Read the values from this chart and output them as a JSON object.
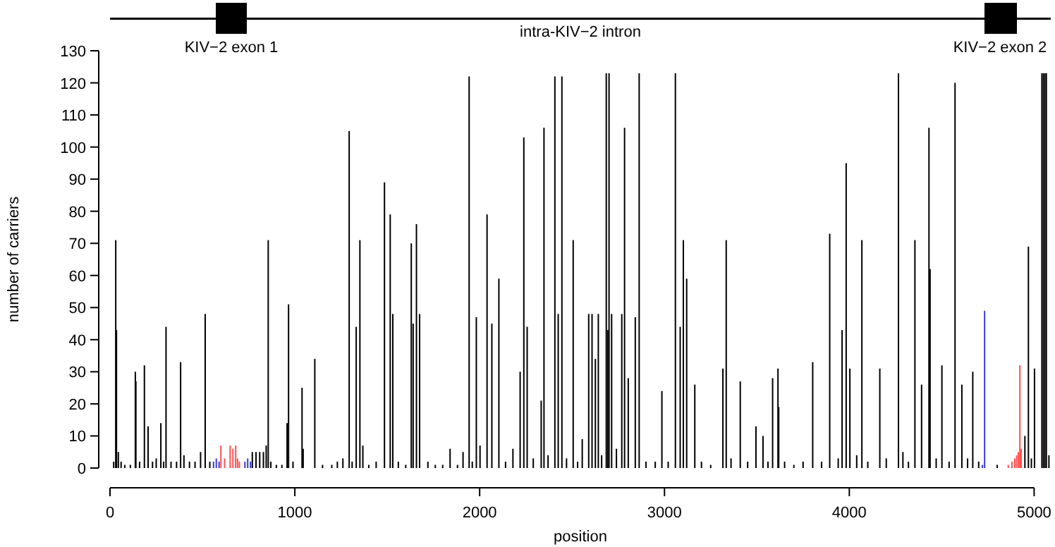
{
  "chart_data": {
    "type": "bar",
    "xlabel": "position",
    "ylabel": "number of carriers",
    "xlim": [
      0,
      5090
    ],
    "xticks": [
      0,
      1000,
      2000,
      3000,
      4000,
      5000
    ],
    "ylim": [
      0,
      130
    ],
    "yticks": [
      0,
      10,
      20,
      30,
      40,
      50,
      60,
      70,
      80,
      90,
      100,
      110,
      120,
      130
    ],
    "grid": false,
    "series": [
      {
        "color": "#000000",
        "x": [
          20,
          31,
          35,
          45,
          60,
          80,
          110,
          137,
          140,
          160,
          186,
          206,
          230,
          250,
          275,
          290,
          303,
          330,
          360,
          382,
          400,
          430,
          460,
          490,
          515,
          540,
          770,
          790,
          810,
          830,
          845,
          856,
          870,
          900,
          930,
          958,
          966,
          990,
          1039,
          1045,
          1108,
          1150,
          1200,
          1230,
          1260,
          1294,
          1310,
          1332,
          1352,
          1368,
          1400,
          1440,
          1485,
          1516,
          1530,
          1560,
          1600,
          1630,
          1640,
          1658,
          1675,
          1720,
          1760,
          1800,
          1840,
          1880,
          1910,
          1943,
          1960,
          1982,
          2002,
          2040,
          2066,
          2104,
          2140,
          2180,
          2219,
          2239,
          2257,
          2290,
          2333,
          2348,
          2370,
          2407,
          2425,
          2445,
          2470,
          2506,
          2530,
          2555,
          2590,
          2608,
          2626,
          2642,
          2660,
          2685,
          2693,
          2700,
          2714,
          2740,
          2769,
          2784,
          2804,
          2842,
          2863,
          2900,
          2950,
          2986,
          3020,
          3059,
          3085,
          3102,
          3120,
          3164,
          3200,
          3250,
          3316,
          3334,
          3360,
          3410,
          3450,
          3495,
          3533,
          3560,
          3585,
          3614,
          3618,
          3650,
          3700,
          3750,
          3802,
          3850,
          3894,
          3940,
          3961,
          3983,
          4003,
          4040,
          4068,
          4100,
          4165,
          4200,
          4266,
          4290,
          4320,
          4355,
          4391,
          4431,
          4437,
          4470,
          4501,
          4540,
          4572,
          4609,
          4640,
          4668,
          4700,
          4800,
          4950,
          4969,
          4985,
          5002,
          5042,
          5050,
          5058,
          5066,
          5080
        ],
        "values": [
          2,
          71,
          43,
          5,
          2,
          1,
          1,
          30,
          27,
          2,
          32,
          13,
          2,
          3,
          14,
          2,
          44,
          2,
          2,
          33,
          4,
          2,
          2,
          5,
          48,
          2,
          5,
          5,
          5,
          5,
          7,
          71,
          2,
          1,
          1,
          14,
          51,
          2,
          25,
          6,
          34,
          1,
          1,
          2,
          3,
          105,
          2,
          44,
          71,
          7,
          1,
          2,
          89,
          79,
          48,
          2,
          1,
          70,
          45,
          76,
          48,
          2,
          1,
          1,
          6,
          1,
          5,
          122,
          2,
          47,
          7,
          79,
          45,
          59,
          2,
          6,
          30,
          103,
          44,
          3,
          21,
          106,
          4,
          122,
          48,
          122,
          3,
          71,
          2,
          9,
          48,
          48,
          34,
          48,
          4,
          123,
          43,
          123,
          48,
          6,
          48,
          106,
          28,
          47,
          123,
          2,
          2,
          24,
          2,
          123,
          44,
          71,
          59,
          26,
          2,
          1,
          31,
          71,
          3,
          27,
          2,
          13,
          10,
          2,
          28,
          31,
          19,
          2,
          1,
          2,
          33,
          2,
          73,
          3,
          43,
          95,
          31,
          4,
          71,
          2,
          31,
          3,
          123,
          5,
          2,
          71,
          26,
          106,
          62,
          3,
          32,
          2,
          120,
          26,
          3,
          30,
          2,
          1,
          10,
          69,
          3,
          31,
          123,
          123,
          123,
          123,
          4
        ]
      },
      {
        "color": "#ff4f4f",
        "x": [
          600,
          620,
          650,
          665,
          680,
          690,
          700,
          4860,
          4880,
          4895,
          4905,
          4915,
          4923,
          4930
        ],
        "values": [
          7,
          3,
          7,
          6,
          7,
          3,
          2,
          1,
          2,
          3,
          4,
          5,
          32,
          6
        ]
      },
      {
        "color": "#3a3ad0",
        "x": [
          560,
          575,
          590,
          730,
          745,
          760,
          4720,
          4732
        ],
        "values": [
          2,
          3,
          2,
          2,
          3,
          2,
          1,
          49
        ]
      }
    ],
    "annotations": [
      "KIV−2 exon 1",
      "intra-KIV−2 intron",
      "KIV−2 exon 2"
    ]
  }
}
